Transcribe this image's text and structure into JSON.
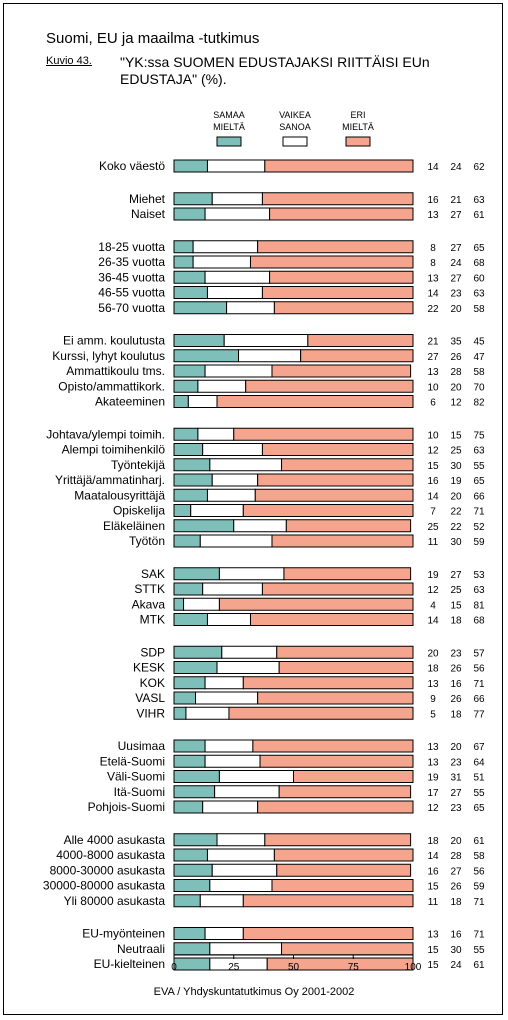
{
  "header": {
    "title": "Suomi, EU ja maailma -tutkimus",
    "figure_no": "Kuvio 43.",
    "question": "\"YK:ssa SUOMEN EDUSTAJAKSI RIITTÄISI EUn EDUSTAJA\" (%)."
  },
  "footer": {
    "source": "EVA / Yhdyskuntatutkimus Oy 2001-2002"
  },
  "chart_data": {
    "type": "bar",
    "stacked": true,
    "orientation": "horizontal",
    "xlim": [
      0,
      100
    ],
    "xticks": [
      0,
      25,
      50,
      75,
      100
    ],
    "colors": {
      "samaa": "#7fbfb9",
      "vaikea": "#ffffff",
      "eri": "#f5a48e"
    },
    "legend": [
      {
        "label": "SAMAA MIELTÄ",
        "key": "samaa"
      },
      {
        "label": "VAIKEA SANOA",
        "key": "vaikea"
      },
      {
        "label": "ERI MIELTÄ",
        "key": "eri"
      }
    ],
    "groups": [
      {
        "rows": [
          {
            "label": "Koko väestö",
            "values": [
              14,
              24,
              62
            ]
          }
        ]
      },
      {
        "rows": [
          {
            "label": "Miehet",
            "values": [
              16,
              21,
              63
            ]
          },
          {
            "label": "Naiset",
            "values": [
              13,
              27,
              61
            ]
          }
        ]
      },
      {
        "rows": [
          {
            "label": "18-25 vuotta",
            "values": [
              8,
              27,
              65
            ]
          },
          {
            "label": "26-35 vuotta",
            "values": [
              8,
              24,
              68
            ]
          },
          {
            "label": "36-45 vuotta",
            "values": [
              13,
              27,
              60
            ]
          },
          {
            "label": "46-55 vuotta",
            "values": [
              14,
              23,
              63
            ]
          },
          {
            "label": "56-70 vuotta",
            "values": [
              22,
              20,
              58
            ]
          }
        ]
      },
      {
        "rows": [
          {
            "label": "Ei amm. koulutusta",
            "values": [
              21,
              35,
              45
            ]
          },
          {
            "label": "Kurssi, lyhyt koulutus",
            "values": [
              27,
              26,
              47
            ]
          },
          {
            "label": "Ammattikoulu tms.",
            "values": [
              13,
              28,
              58
            ]
          },
          {
            "label": "Opisto/ammattikork.",
            "values": [
              10,
              20,
              70
            ]
          },
          {
            "label": "Akateeminen",
            "values": [
              6,
              12,
              82
            ]
          }
        ]
      },
      {
        "rows": [
          {
            "label": "Johtava/ylempi toimih.",
            "values": [
              10,
              15,
              75
            ]
          },
          {
            "label": "Alempi toimihenkilö",
            "values": [
              12,
              25,
              63
            ]
          },
          {
            "label": "Työntekijä",
            "values": [
              15,
              30,
              55
            ]
          },
          {
            "label": "Yrittäjä/ammatinharj.",
            "values": [
              16,
              19,
              65
            ]
          },
          {
            "label": "Maatalousyrittäjä",
            "values": [
              14,
              20,
              66
            ]
          },
          {
            "label": "Opiskelija",
            "values": [
              7,
              22,
              71
            ]
          },
          {
            "label": "Eläkeläinen",
            "values": [
              25,
              22,
              52
            ]
          },
          {
            "label": "Työtön",
            "values": [
              11,
              30,
              59
            ]
          }
        ]
      },
      {
        "rows": [
          {
            "label": "SAK",
            "values": [
              19,
              27,
              53
            ]
          },
          {
            "label": "STTK",
            "values": [
              12,
              25,
              63
            ]
          },
          {
            "label": "Akava",
            "values": [
              4,
              15,
              81
            ]
          },
          {
            "label": "MTK",
            "values": [
              14,
              18,
              68
            ]
          }
        ]
      },
      {
        "rows": [
          {
            "label": "SDP",
            "values": [
              20,
              23,
              57
            ]
          },
          {
            "label": "KESK",
            "values": [
              18,
              26,
              56
            ]
          },
          {
            "label": "KOK",
            "values": [
              13,
              16,
              71
            ]
          },
          {
            "label": "VASL",
            "values": [
              9,
              26,
              66
            ]
          },
          {
            "label": "VIHR",
            "values": [
              5,
              18,
              77
            ]
          }
        ]
      },
      {
        "rows": [
          {
            "label": "Uusimaa",
            "values": [
              13,
              20,
              67
            ]
          },
          {
            "label": "Etelä-Suomi",
            "values": [
              13,
              23,
              64
            ]
          },
          {
            "label": "Väli-Suomi",
            "values": [
              19,
              31,
              51
            ]
          },
          {
            "label": "Itä-Suomi",
            "values": [
              17,
              27,
              55
            ]
          },
          {
            "label": "Pohjois-Suomi",
            "values": [
              12,
              23,
              65
            ]
          }
        ]
      },
      {
        "rows": [
          {
            "label": "Alle 4000 asukasta",
            "values": [
              18,
              20,
              61
            ]
          },
          {
            "label": "4000-8000 asukasta",
            "values": [
              14,
              28,
              58
            ]
          },
          {
            "label": "8000-30000 asukasta",
            "values": [
              16,
              27,
              56
            ]
          },
          {
            "label": "30000-80000 asukasta",
            "values": [
              15,
              26,
              59
            ]
          },
          {
            "label": "Yli 80000 asukasta",
            "values": [
              11,
              18,
              71
            ]
          }
        ]
      },
      {
        "rows": [
          {
            "label": "EU-myönteinen",
            "values": [
              13,
              16,
              71
            ]
          },
          {
            "label": "Neutraali",
            "values": [
              15,
              30,
              55
            ]
          },
          {
            "label": "EU-kielteinen",
            "values": [
              15,
              24,
              61
            ]
          }
        ]
      }
    ]
  }
}
